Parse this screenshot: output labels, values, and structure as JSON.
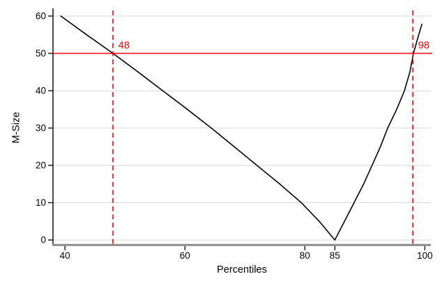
{
  "chart_data": {
    "type": "line",
    "title": "",
    "xlabel": "Percentiles",
    "ylabel": "M-Size",
    "xlim": [
      38,
      101
    ],
    "ylim": [
      -1.1,
      61.5
    ],
    "x_ticks": [
      40,
      60,
      80,
      85,
      100
    ],
    "y_ticks": [
      0,
      10,
      20,
      30,
      40,
      50,
      60
    ],
    "grid": {
      "horizontal": true,
      "vertical": false
    },
    "legend": "none",
    "series": [
      {
        "name": "m-size-curve",
        "color": "#000000",
        "points": [
          [
            39.3,
            60
          ],
          [
            43.6,
            55
          ],
          [
            48,
            50
          ],
          [
            52.2,
            45
          ],
          [
            56.3,
            40
          ],
          [
            60.4,
            35
          ],
          [
            64.4,
            30
          ],
          [
            68.2,
            25
          ],
          [
            72,
            20
          ],
          [
            75.8,
            15
          ],
          [
            79.4,
            10
          ],
          [
            82.4,
            5
          ],
          [
            85,
            0
          ],
          [
            86.6,
            5
          ],
          [
            88.2,
            10
          ],
          [
            89.8,
            15
          ],
          [
            91.2,
            20
          ],
          [
            92.6,
            25
          ],
          [
            93.8,
            30
          ],
          [
            95.3,
            35
          ],
          [
            96.6,
            40
          ],
          [
            97.5,
            45
          ],
          [
            98.1,
            50
          ],
          [
            98.8,
            54
          ],
          [
            99.2,
            56.2
          ],
          [
            99.5,
            57.8
          ]
        ]
      }
    ],
    "reference_lines": [
      {
        "orientation": "horizontal",
        "value": 50,
        "style": "solid",
        "color": "#ff0000"
      },
      {
        "orientation": "vertical",
        "value": 48,
        "style": "dashed",
        "color": "#ff0000"
      },
      {
        "orientation": "vertical",
        "value": 98,
        "style": "dashed",
        "color": "#ff0000"
      }
    ],
    "annotations": [
      {
        "text": "48",
        "x": 48.9,
        "y": 51.3,
        "color": "#ff0000"
      },
      {
        "text": "98",
        "x": 98.9,
        "y": 51.3,
        "color": "#ff0000"
      }
    ]
  },
  "colors": {
    "background": "#ffffff",
    "grid": "#d6d6d6",
    "axis_x": "#8c8c8c",
    "axis_y": "#000000",
    "tick": "#000000",
    "text": "#000000",
    "accent_red": "#ff0000",
    "line": "#000000"
  }
}
